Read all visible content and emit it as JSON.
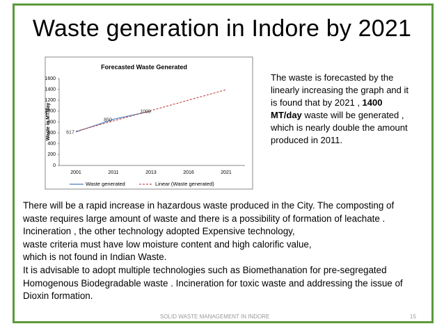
{
  "title": "Waste generation in Indore by 2021",
  "chart_data": {
    "type": "line",
    "title": "Forecasted Waste  Generated",
    "y_label": "Waste in MT/day",
    "categories": [
      "2001",
      "2011",
      "2013",
      "2016",
      "2021"
    ],
    "series": [
      {
        "name": "Waste generated",
        "color": "#4a7ebb",
        "values": [
          617,
          850,
          1000,
          null,
          null
        ],
        "data_labels": true
      },
      {
        "name": "Linear (Waste generated)",
        "color": "#c0504d",
        "dashed": true,
        "values": [
          628,
          820,
          1011,
          1203,
          1394
        ]
      }
    ],
    "ylim": [
      0,
      1600
    ],
    "yticks": [
      0,
      200,
      400,
      600,
      800,
      1000,
      1200,
      1400,
      1600
    ],
    "grid": false,
    "legend": "bottom"
  },
  "side_text": {
    "before": "The waste is forecasted by the linearly increasing the graph and it is found  that by 2021 , ",
    "bold": "1400 MT/day",
    "after": " waste will be generated , which is nearly double the amount produced in 2011."
  },
  "body_lines": [
    "There will be a rapid increase in hazardous waste produced in the City. The composting of",
    "waste requires large amount of waste and there is a possibility of formation of leachate .",
    "Incineration , the other technology adopted Expensive technology,",
    "waste criteria must have low moisture content and high calorific value,",
    "which is not found in Indian Waste.",
    "It is advisable to adopt multiple technologies such as Biomethanation for pre-segregated",
    "Homogenous Biodegradable waste . Incineration for toxic waste and addressing the issue of",
    "Dioxin formation."
  ],
  "footer": "SOLID WASTE MANAGEMENT IN INDORE",
  "page_number": "15"
}
